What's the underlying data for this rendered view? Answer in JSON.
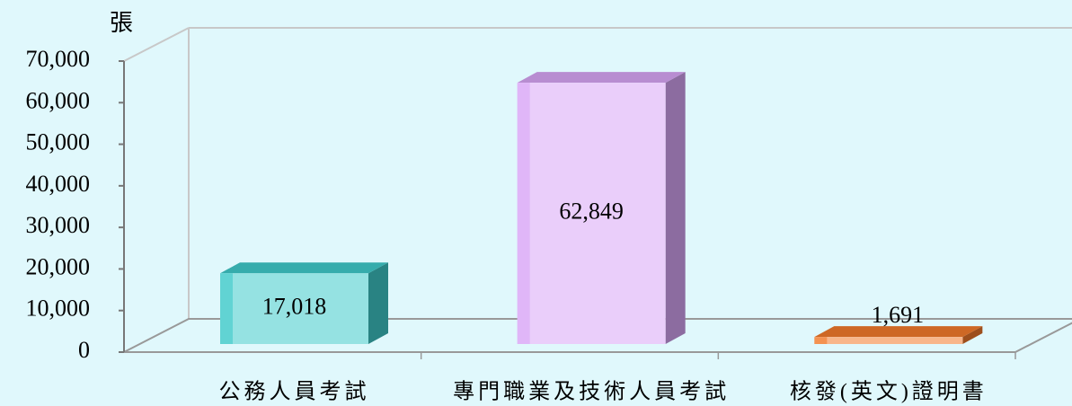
{
  "chart_data": {
    "type": "bar3d",
    "y_axis_label": "張",
    "categories": [
      "公務人員考試",
      "專門職業及技術人員考試",
      "核發(英文)證明書"
    ],
    "values": [
      17018,
      62849,
      1691
    ],
    "value_labels": [
      "17,018",
      "62,849",
      "1,691"
    ],
    "colors": [
      "#3fcaca",
      "#d8a6f6",
      "#f27a2c"
    ],
    "ylim": [
      0,
      70000
    ],
    "yticks": [
      0,
      {
        "value": 10000,
        "label": "10,000"
      },
      {
        "value": 20000,
        "label": "20,000"
      },
      {
        "value": 30000,
        "label": "30,000"
      },
      {
        "value": 40000,
        "label": "40,000"
      },
      {
        "value": 50000,
        "label": "50,000"
      },
      {
        "value": 60000,
        "label": "60,000"
      },
      {
        "value": 70000,
        "label": "70,000"
      }
    ],
    "grid": false
  }
}
